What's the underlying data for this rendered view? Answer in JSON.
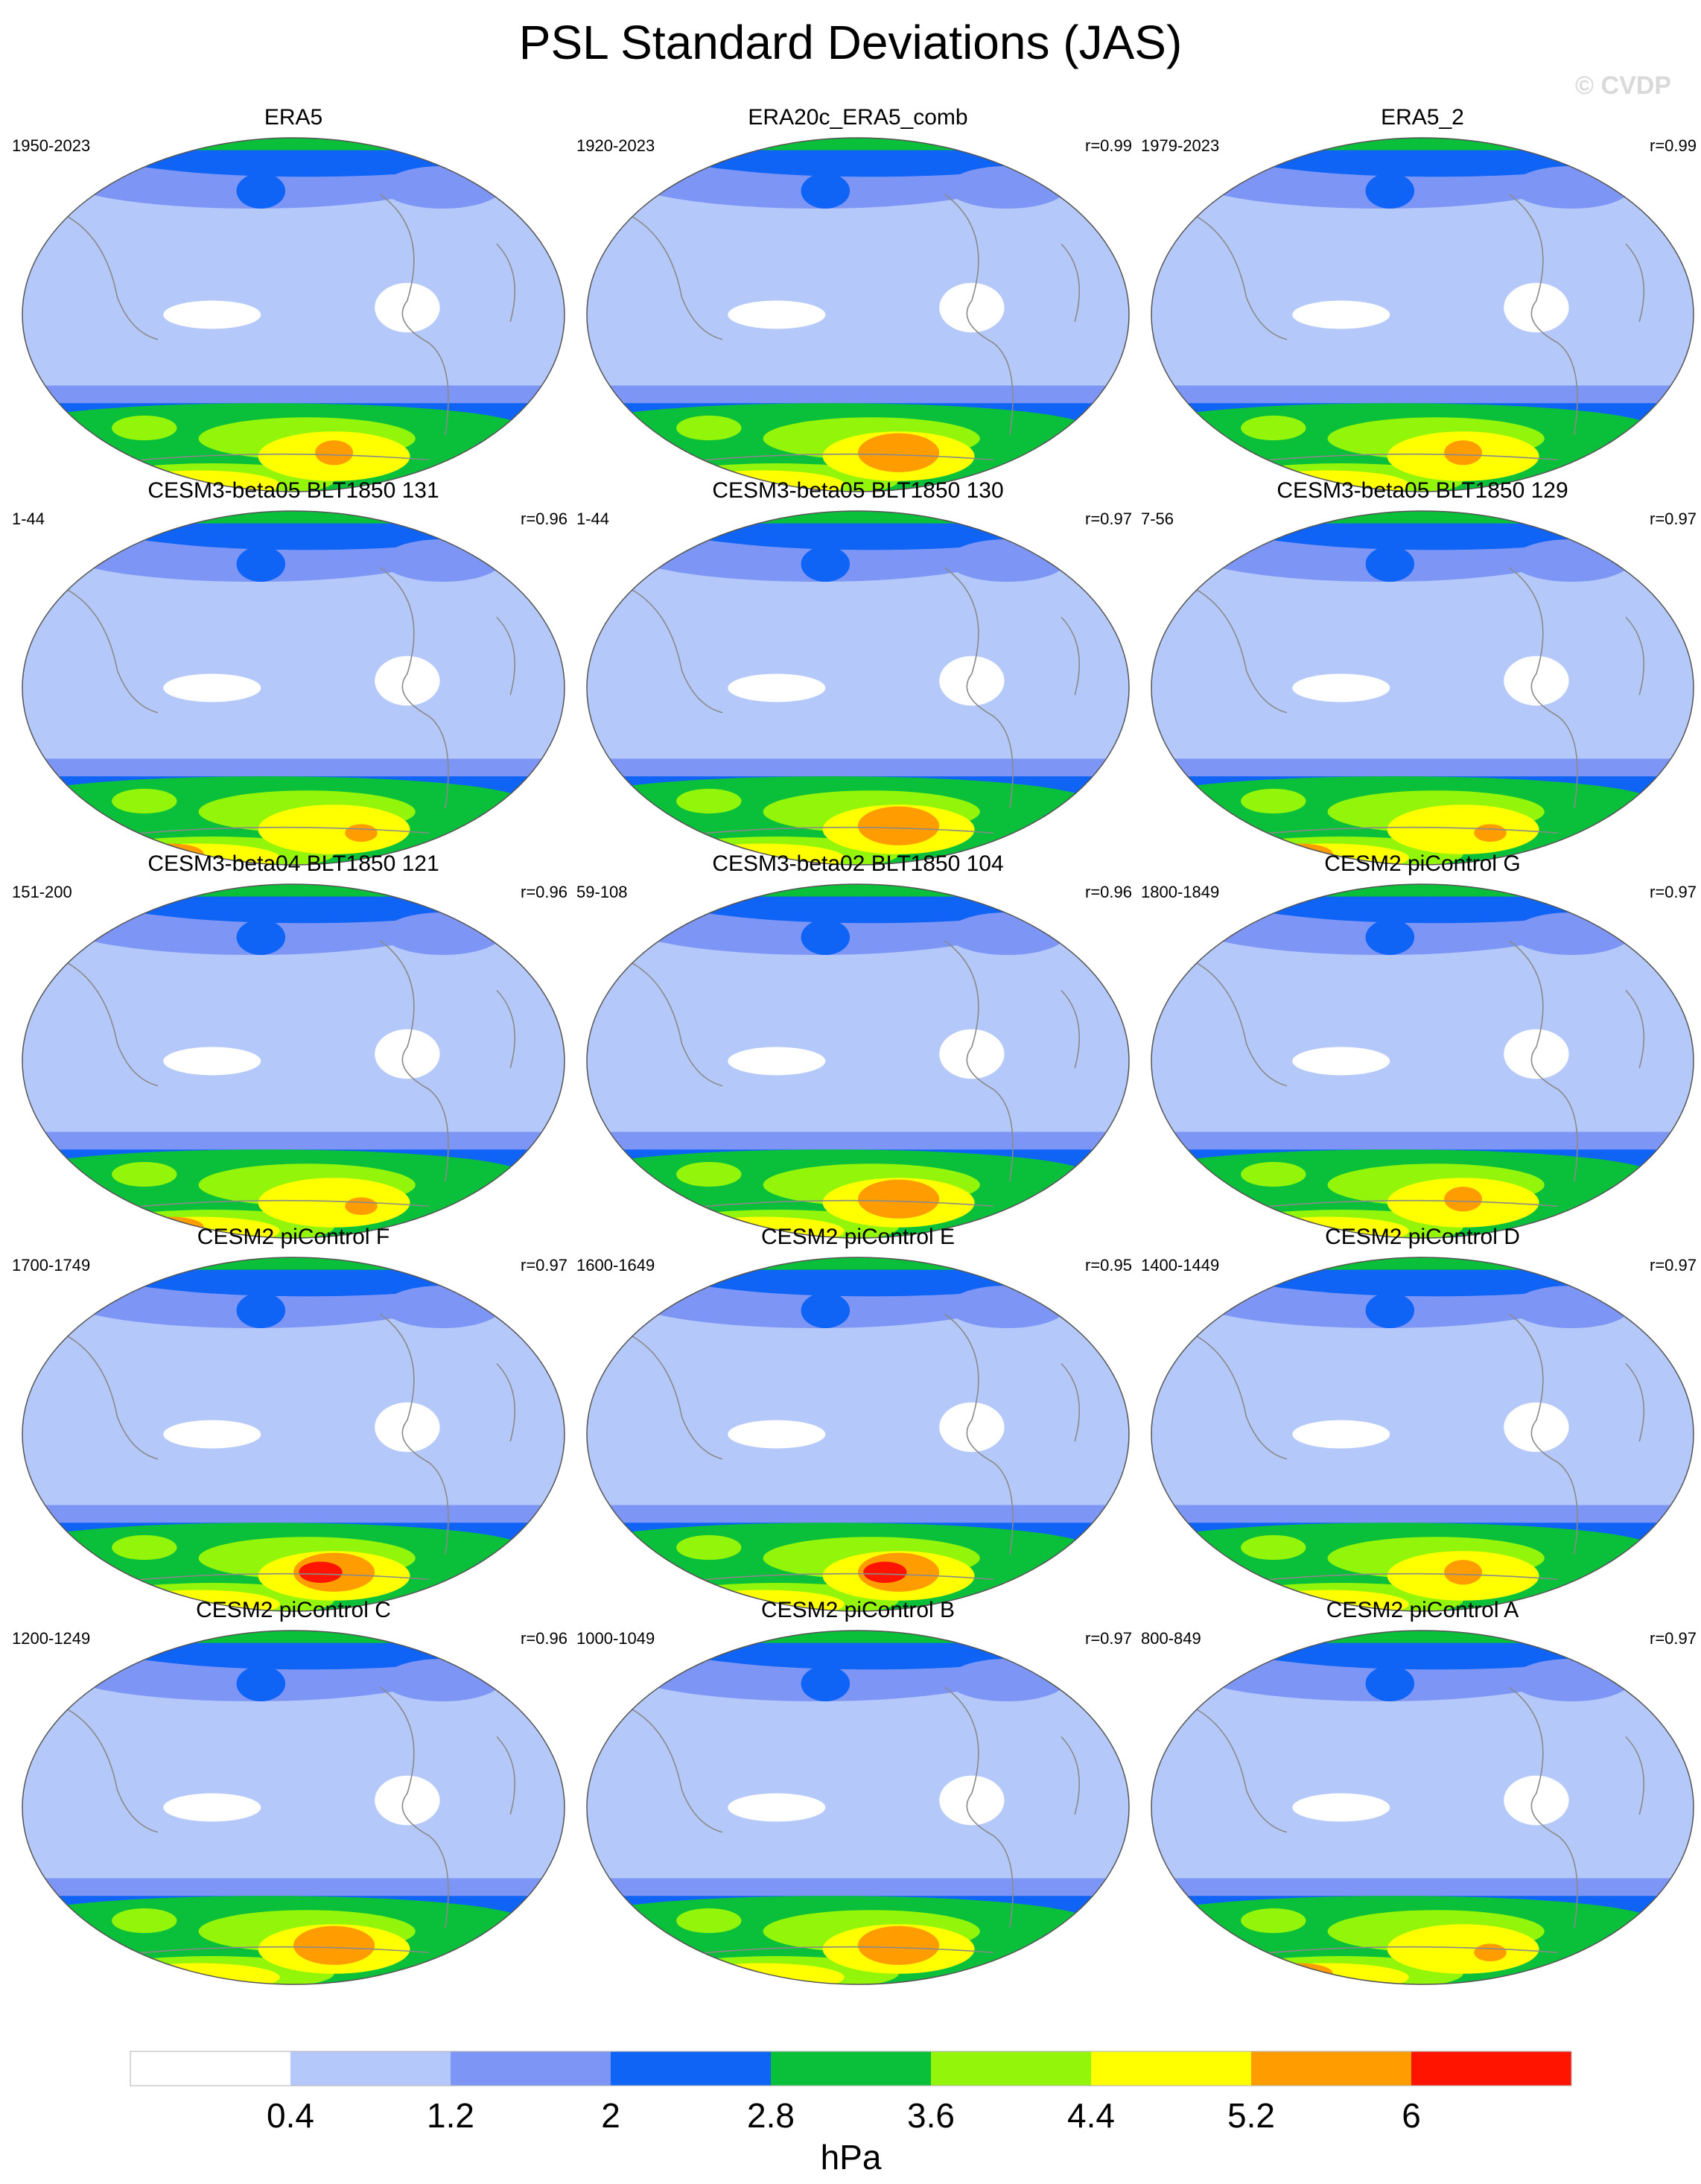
{
  "title": "PSL Standard Deviations (JAS)",
  "watermark": "© CVDP",
  "panels": [
    {
      "name": "ERA5",
      "years": "1950-2023",
      "r": "",
      "style": 0
    },
    {
      "name": "ERA20c_ERA5_comb",
      "years": "1920-2023",
      "r": "r=0.99",
      "style": 1
    },
    {
      "name": "ERA5_2",
      "years": "1979-2023",
      "r": "r=0.99",
      "style": 0
    },
    {
      "name": "CESM3-beta05 BLT1850 131",
      "years": "1-44",
      "r": "r=0.96",
      "style": 2
    },
    {
      "name": "CESM3-beta05 BLT1850 130",
      "years": "1-44",
      "r": "r=0.97",
      "style": 1
    },
    {
      "name": "CESM3-beta05 BLT1850 129",
      "years": "7-56",
      "r": "r=0.97",
      "style": 2
    },
    {
      "name": "CESM3-beta04 BLT1850 121",
      "years": "151-200",
      "r": "r=0.96",
      "style": 2
    },
    {
      "name": "CESM3-beta02 BLT1850 104",
      "years": "59-108",
      "r": "r=0.96",
      "style": 1
    },
    {
      "name": "CESM2 piControl G",
      "years": "1800-1849",
      "r": "r=0.97",
      "style": 0
    },
    {
      "name": "CESM2 piControl F",
      "years": "1700-1749",
      "r": "r=0.97",
      "style": 3
    },
    {
      "name": "CESM2 piControl E",
      "years": "1600-1649",
      "r": "r=0.95",
      "style": 3
    },
    {
      "name": "CESM2 piControl D",
      "years": "1400-1449",
      "r": "r=0.97",
      "style": 0
    },
    {
      "name": "CESM2 piControl C",
      "years": "1200-1249",
      "r": "r=0.96",
      "style": 1
    },
    {
      "name": "CESM2 piControl B",
      "years": "1000-1049",
      "r": "r=0.97",
      "style": 1
    },
    {
      "name": "CESM2 piControl A",
      "years": "800-849",
      "r": "r=0.97",
      "style": 2
    }
  ],
  "colorbar": {
    "colors": [
      "#ffffff",
      "#b4c8fa",
      "#7d96f5",
      "#0f64f5",
      "#0abf3a",
      "#93f50a",
      "#ffff00",
      "#ff9d00",
      "#ff1400"
    ],
    "labels": [
      "0.4",
      "1.2",
      "2",
      "2.8",
      "3.6",
      "4.4",
      "5.2",
      "6"
    ],
    "unit": "hPa"
  }
}
